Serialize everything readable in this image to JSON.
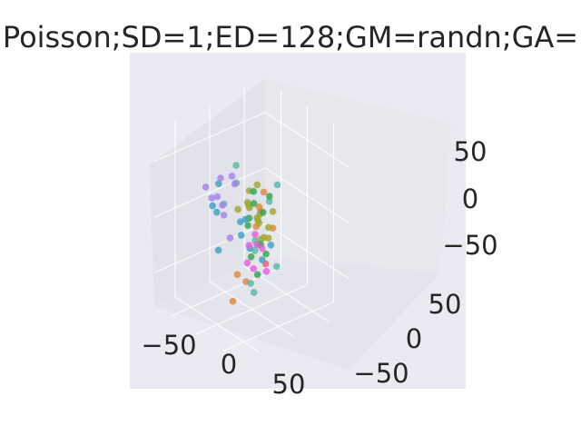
{
  "chart_data": {
    "type": "scatter",
    "projection": "3d",
    "title": "Poisson;SD=1;ED=128;GM=randn;GA=",
    "xlabel": "",
    "ylabel": "",
    "zlabel": "",
    "xlim": [
      -80,
      80
    ],
    "ylim": [
      -80,
      80
    ],
    "zlim": [
      -80,
      80
    ],
    "x_ticks": [
      "−50",
      "0",
      "50"
    ],
    "y_ticks": [
      "−50",
      "0",
      "50"
    ],
    "z_ticks": [
      "−50",
      "0",
      "50"
    ],
    "grid": true,
    "legend": "none",
    "colors": {
      "background": "#ffffff",
      "axes_face": "#eaeaf2",
      "pane_left": "#e2e2ea",
      "pane_right": "#e7e7ee",
      "pane_floor": "#e4e4ec",
      "grid": "#ffffff",
      "text": "#262626"
    },
    "series": [
      {
        "color": "#e8616f",
        "points": [
          [
            -20,
            35,
            -55
          ],
          [
            30,
            -10,
            20
          ]
        ]
      },
      {
        "color": "#df8936",
        "points": [
          [
            15,
            -20,
            -45
          ],
          [
            10,
            -35,
            -60
          ],
          [
            25,
            -40,
            -30
          ],
          [
            -5,
            10,
            -10
          ],
          [
            20,
            15,
            -5
          ],
          [
            -30,
            40,
            5
          ],
          [
            40,
            -20,
            30
          ]
        ]
      },
      {
        "color": "#a0a731",
        "points": [
          [
            5,
            5,
            0
          ],
          [
            15,
            0,
            10
          ],
          [
            -10,
            15,
            -5
          ],
          [
            20,
            -5,
            5
          ],
          [
            10,
            10,
            -15
          ],
          [
            0,
            -5,
            15
          ],
          [
            25,
            5,
            0
          ],
          [
            -5,
            0,
            25
          ],
          [
            30,
            -10,
            -5
          ],
          [
            -15,
            5,
            10
          ],
          [
            5,
            20,
            -20
          ],
          [
            15,
            -15,
            20
          ],
          [
            10,
            0,
            35
          ],
          [
            0,
            10,
            -25
          ],
          [
            -20,
            -5,
            5
          ],
          [
            20,
            15,
            10
          ]
        ]
      },
      {
        "color": "#5cb6a7",
        "points": [
          [
            -30,
            0,
            40
          ],
          [
            -40,
            -10,
            5
          ],
          [
            10,
            -30,
            45
          ],
          [
            50,
            -40,
            -30
          ],
          [
            30,
            -20,
            -50
          ],
          [
            45,
            -30,
            -5
          ],
          [
            60,
            -10,
            -20
          ],
          [
            -20,
            20,
            -30
          ],
          [
            0,
            25,
            10
          ],
          [
            35,
            10,
            40
          ]
        ]
      },
      {
        "color": "#35a650",
        "points": [
          [
            10,
            5,
            -20
          ],
          [
            25,
            -25,
            10
          ],
          [
            -10,
            10,
            20
          ],
          [
            40,
            -10,
            -15
          ],
          [
            5,
            -5,
            -30
          ],
          [
            30,
            -20,
            30
          ],
          [
            -5,
            20,
            0
          ],
          [
            50,
            -30,
            -25
          ],
          [
            20,
            10,
            25
          ],
          [
            -25,
            15,
            -10
          ]
        ]
      },
      {
        "color": "#3aa2c4",
        "points": [
          [
            -50,
            -10,
            20
          ],
          [
            -60,
            -5,
            -10
          ],
          [
            -40,
            15,
            -30
          ],
          [
            -70,
            5,
            -50
          ],
          [
            -55,
            -15,
            0
          ],
          [
            -30,
            20,
            -40
          ],
          [
            -45,
            25,
            -20
          ],
          [
            -20,
            30,
            -50
          ],
          [
            -10,
            35,
            -35
          ],
          [
            -35,
            10,
            -15
          ]
        ]
      },
      {
        "color": "#a483e9",
        "points": [
          [
            -20,
            -30,
            40
          ],
          [
            -35,
            -40,
            30
          ],
          [
            -10,
            -35,
            20
          ],
          [
            -5,
            -25,
            45
          ],
          [
            -50,
            -20,
            10
          ],
          [
            20,
            -40,
            50
          ],
          [
            -15,
            -20,
            -15
          ],
          [
            -40,
            -10,
            -5
          ],
          [
            0,
            -50,
            35
          ]
        ]
      },
      {
        "color": "#e75fe0",
        "points": [
          [
            60,
            -50,
            10
          ],
          [
            70,
            -60,
            0
          ],
          [
            80,
            -40,
            -10
          ],
          [
            65,
            -45,
            20
          ],
          [
            75,
            -55,
            -5
          ],
          [
            55,
            -35,
            5
          ],
          [
            85,
            -50,
            15
          ]
        ]
      }
    ]
  }
}
